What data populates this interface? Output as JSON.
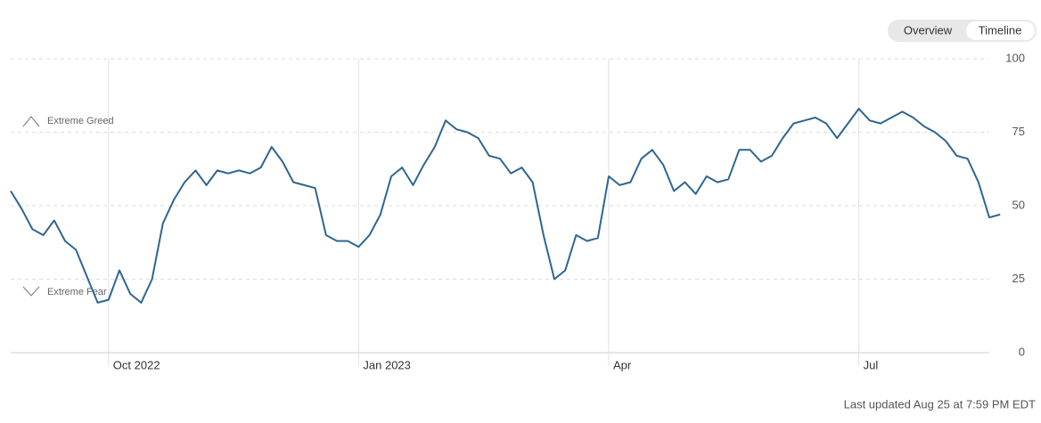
{
  "tabs": [
    "Overview",
    "Timeline"
  ],
  "footer": "Last updated Aug 25 at 7:59 PM EDT",
  "chart_data": {
    "type": "line",
    "annotations": [
      "Extreme Greed",
      "Extreme Fear"
    ],
    "categories": [
      null,
      null,
      null,
      null,
      null,
      null,
      null,
      null,
      null,
      "Oct 2022",
      null,
      null,
      null,
      null,
      null,
      null,
      null,
      null,
      null,
      null,
      null,
      null,
      null,
      null,
      null,
      null,
      null,
      null,
      null,
      null,
      null,
      null,
      "Jan 2023",
      null,
      null,
      null,
      null,
      null,
      null,
      null,
      null,
      null,
      null,
      null,
      null,
      null,
      null,
      null,
      null,
      null,
      null,
      null,
      null,
      null,
      null,
      "Apr",
      null,
      null,
      null,
      null,
      null,
      null,
      null,
      null,
      null,
      null,
      null,
      null,
      null,
      null,
      null,
      null,
      null,
      null,
      null,
      null,
      null,
      null,
      "Jul",
      null,
      null,
      null,
      null,
      null,
      null,
      null,
      null,
      null,
      null,
      null,
      null,
      null
    ],
    "values": [
      55,
      49,
      42,
      40,
      45,
      38,
      35,
      26,
      17,
      18,
      28,
      20,
      17,
      25,
      44,
      52,
      58,
      62,
      57,
      62,
      61,
      62,
      61,
      63,
      70,
      65,
      58,
      57,
      56,
      40,
      38,
      38,
      36,
      40,
      47,
      60,
      63,
      57,
      64,
      70,
      79,
      76,
      75,
      73,
      67,
      66,
      61,
      63,
      58,
      40,
      25,
      28,
      40,
      38,
      39,
      60,
      57,
      58,
      66,
      69,
      64,
      55,
      58,
      54,
      60,
      58,
      59,
      69,
      69,
      65,
      67,
      73,
      78,
      79,
      80,
      78,
      73,
      78,
      83,
      79,
      78,
      80,
      82,
      80,
      77,
      75,
      72,
      67,
      66,
      58,
      46,
      47
    ],
    "color": "#2f6690",
    "ylim": [
      0,
      100
    ],
    "yticks": [
      0,
      25,
      50,
      75,
      100
    ],
    "grid": true
  }
}
